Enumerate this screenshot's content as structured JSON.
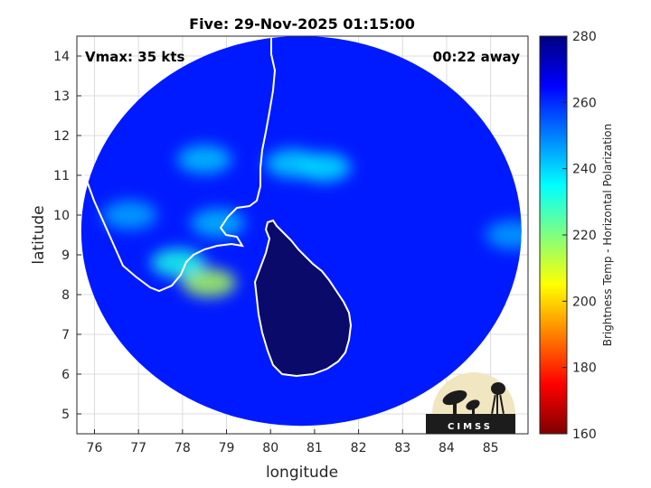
{
  "chart_data": {
    "type": "heatmap",
    "title": "Five: 29-Nov-2025 01:15:00",
    "xlabel": "longitude",
    "ylabel": "latitude",
    "xlim": [
      75.6,
      85.85
    ],
    "ylim": [
      4.5,
      14.5
    ],
    "xticks": [
      76,
      77,
      78,
      79,
      80,
      81,
      82,
      83,
      84,
      85
    ],
    "yticks": [
      5,
      6,
      7,
      8,
      9,
      10,
      11,
      12,
      13,
      14
    ],
    "grid": true,
    "annotations": {
      "vmax": "Vmax: 35 kts",
      "time_away": "00:22 away"
    },
    "colorbar": {
      "label": "Brightness Temp - Horizontal Polarization",
      "range": [
        160,
        280
      ],
      "ticks": [
        160,
        180,
        200,
        220,
        240,
        260,
        280
      ],
      "colormap": [
        "#7f0000",
        "#ff0000",
        "#ff8000",
        "#ffff00",
        "#80ff80",
        "#00ffff",
        "#0080ff",
        "#0000ff",
        "#00007f"
      ]
    },
    "swath": {
      "center": [
        80.7,
        9.6
      ],
      "radius_x": 5.0,
      "radius_y": 4.9,
      "background_value": 262
    },
    "convective_features": [
      {
        "lon": 78.6,
        "lat": 8.3,
        "value": 215
      },
      {
        "lon": 77.9,
        "lat": 8.8,
        "value": 232
      },
      {
        "lon": 81.2,
        "lat": 11.2,
        "value": 238
      },
      {
        "lon": 80.5,
        "lat": 11.3,
        "value": 240
      },
      {
        "lon": 78.5,
        "lat": 11.4,
        "value": 242
      },
      {
        "lon": 76.8,
        "lat": 10.0,
        "value": 245
      },
      {
        "lon": 78.8,
        "lat": 9.8,
        "value": 243
      },
      {
        "lon": 85.5,
        "lat": 9.5,
        "value": 246
      }
    ],
    "logo": "CIMSS"
  }
}
